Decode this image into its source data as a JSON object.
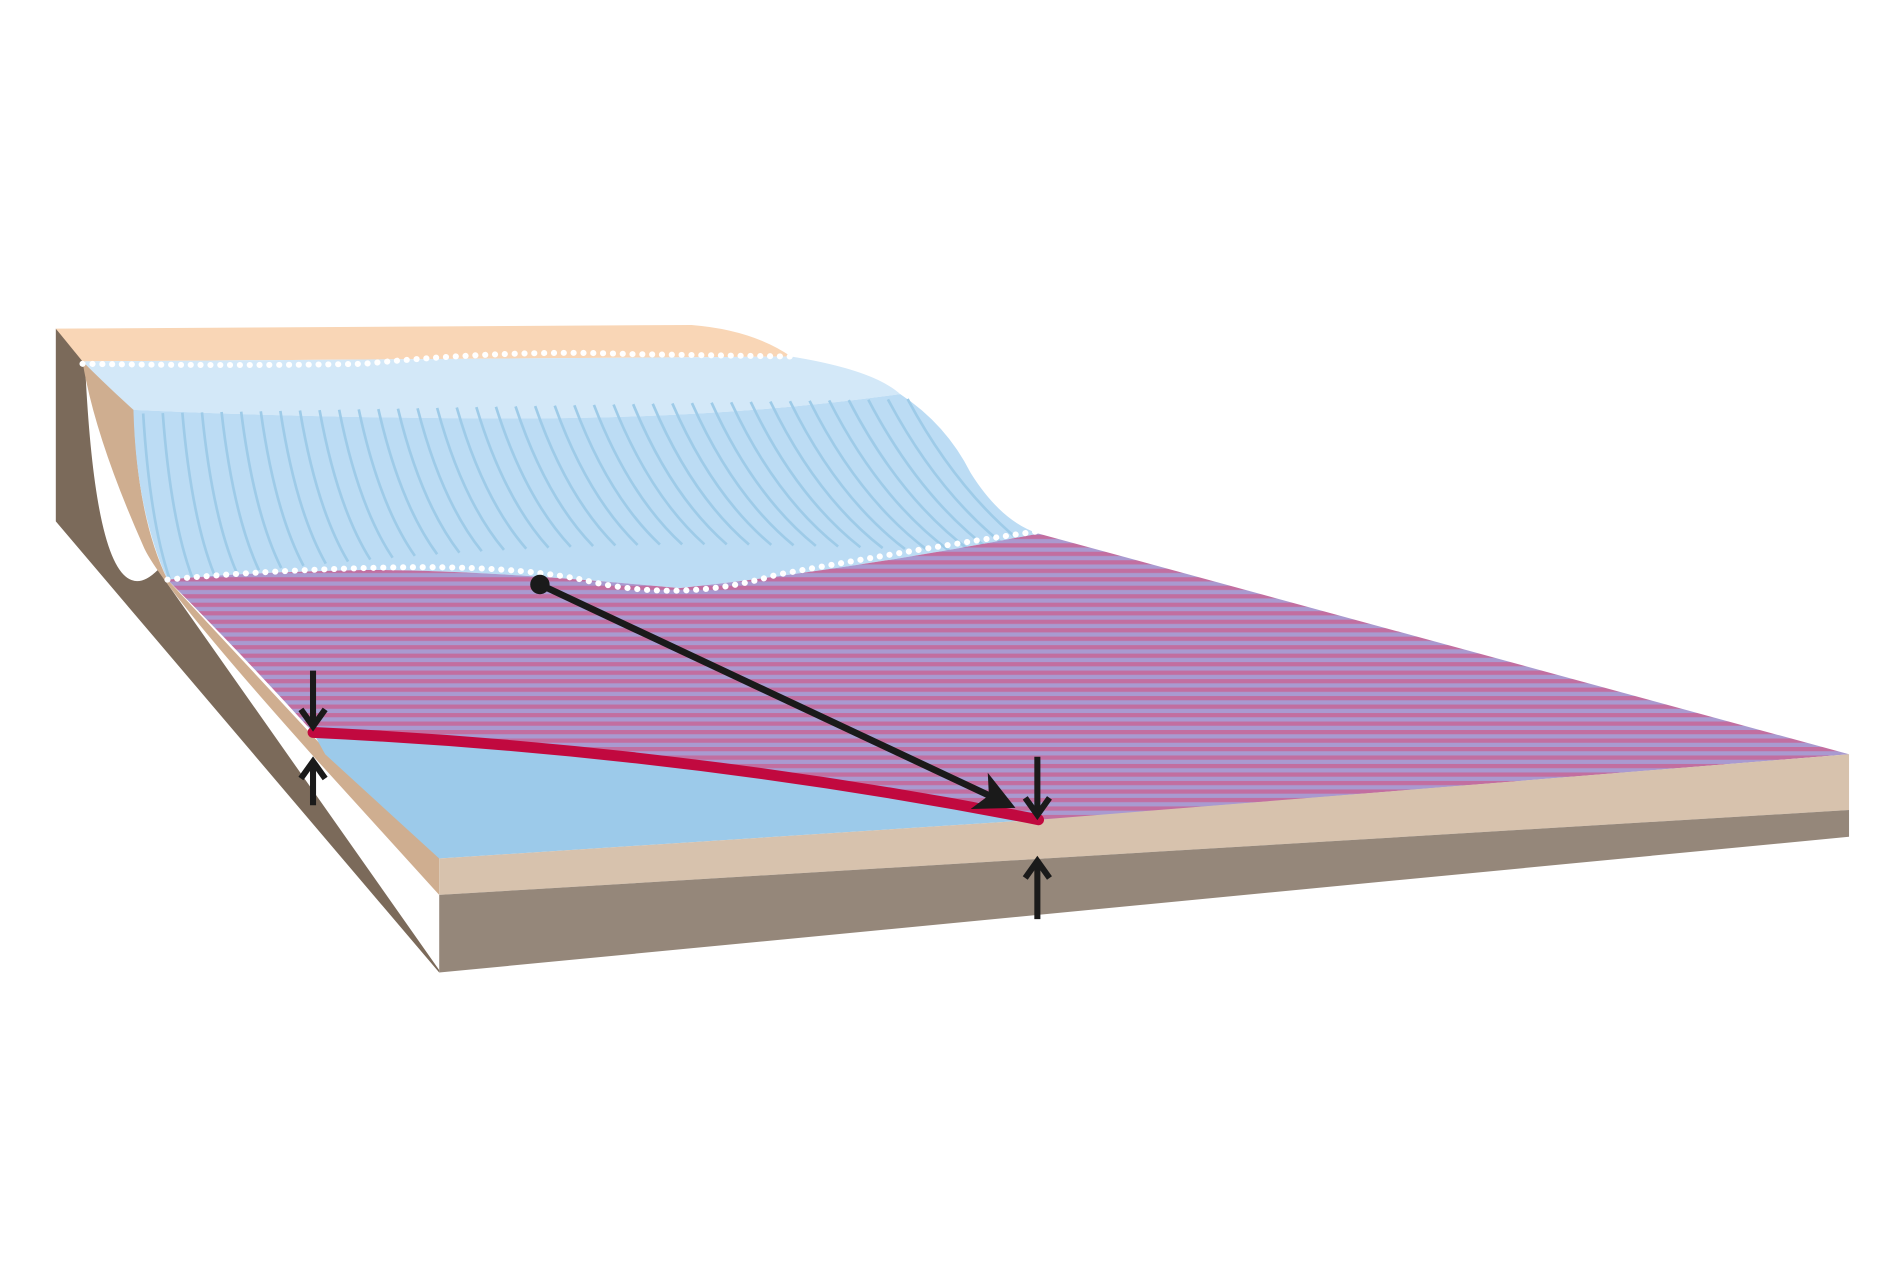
{
  "diagram": {
    "kind": "glacier-grounding-line-block-diagram",
    "labels": [],
    "colors": {
      "background": "#ffffff",
      "land_surface": "#f9d6b6",
      "bedrock_face_dark": "#7b6a5a",
      "bedrock_face_slope": "#cfae90",
      "sediment_front_top": "#d7c2ad",
      "bedrock_front_bottom": "#95877a",
      "ice_top": "#d3e8f8",
      "ice_face": "#bcdcf4",
      "ice_flow_lines": "#9ecbe8",
      "subglacial_water": "#9ccaea",
      "ice_shelf_base": "#c76a95",
      "ice_shelf_stripes": "#a593c8",
      "grounding_line": "#c1093f",
      "arrows": "#1a1a1a",
      "boundary_dots": "#ffffff"
    },
    "elements": [
      {
        "name": "land-surface"
      },
      {
        "name": "glacier-ice"
      },
      {
        "name": "ice-flow-lines"
      },
      {
        "name": "floating-ice-shelf"
      },
      {
        "name": "subglacial-water-cavity"
      },
      {
        "name": "grounding-line"
      },
      {
        "name": "migration-arrow"
      },
      {
        "name": "vertical-movement-arrows"
      }
    ]
  }
}
